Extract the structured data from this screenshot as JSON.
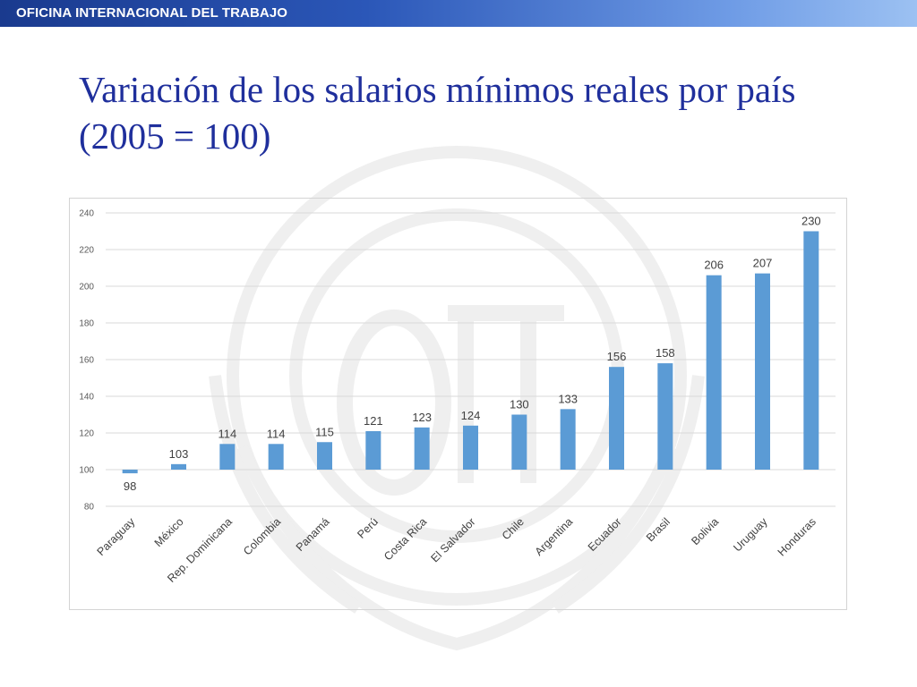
{
  "header": {
    "org_name": "OFICINA INTERNACIONAL DEL TRABAJO"
  },
  "slide": {
    "title": "Variación de los salarios mínimos reales por país (2005 = 100)"
  },
  "colors": {
    "bar": "#5b9bd5",
    "grid": "#d9d9d9",
    "title": "#1f2f9c"
  },
  "chart_data": {
    "type": "bar",
    "title": "",
    "xlabel": "",
    "ylabel": "",
    "categories": [
      "Paraguay",
      "México",
      "Rep. Dominicana",
      "Colombia",
      "Panamá",
      "Perú",
      "Costa Rica",
      "El Salvador",
      "Chile",
      "Argentina",
      "Ecuador",
      "Brasil",
      "Bolivia",
      "Uruguay",
      "Honduras"
    ],
    "values": [
      98,
      103,
      114,
      114,
      115,
      121,
      123,
      124,
      130,
      133,
      156,
      158,
      206,
      207,
      230
    ],
    "baseline": 100,
    "ylim": [
      80,
      240
    ],
    "yticks": [
      80,
      100,
      120,
      140,
      160,
      180,
      200,
      220,
      240
    ],
    "grid": true,
    "legend": "none"
  }
}
